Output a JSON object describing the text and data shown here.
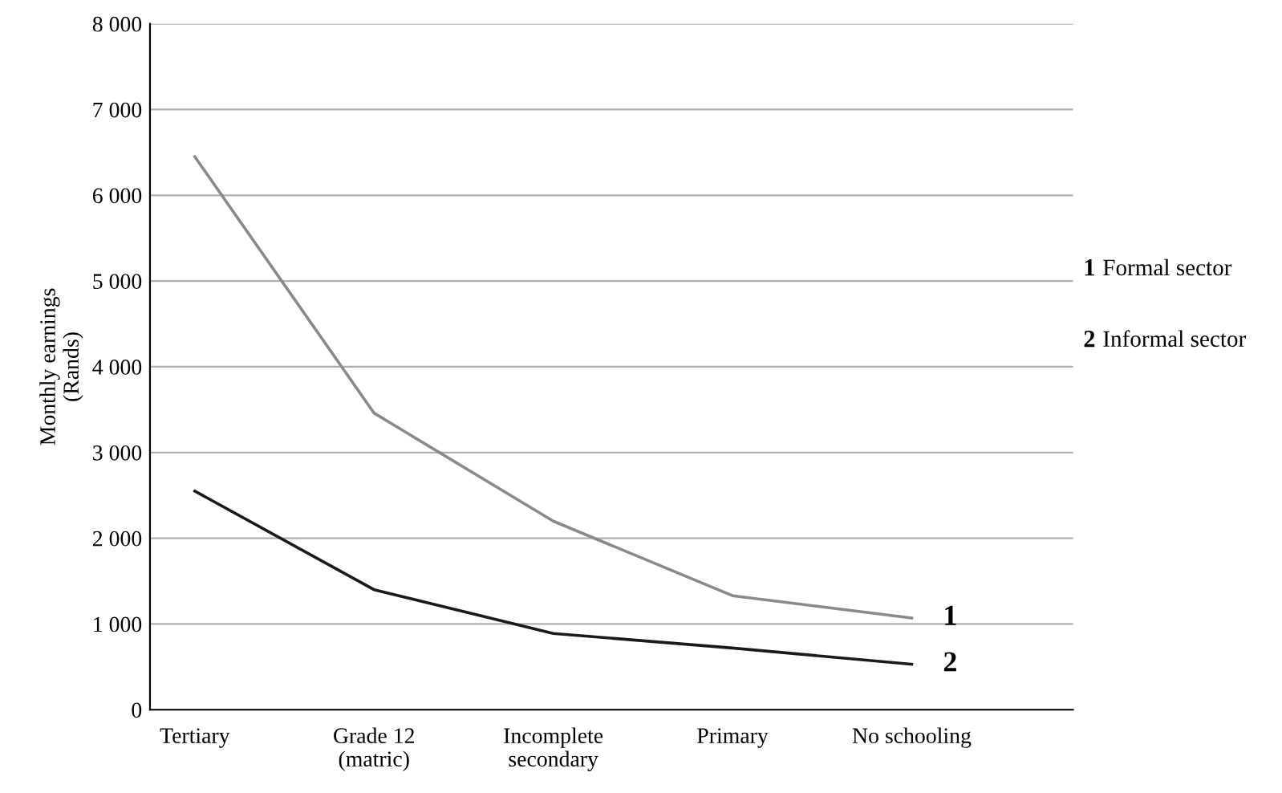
{
  "chart_data": {
    "type": "line",
    "ylabel": "Monthly earnings\n(Rands)",
    "categories": [
      "Tertiary",
      "Grade 12\n(matric)",
      "Incomplete\nsecondary",
      "Primary",
      "No schooling"
    ],
    "series": [
      {
        "name": "Formal sector",
        "color": "#8a8a8a",
        "values": [
          6450,
          3460,
          2200,
          1330,
          1070
        ]
      },
      {
        "name": "Informal sector",
        "color": "#1a1a1a",
        "values": [
          2550,
          1400,
          890,
          720,
          530
        ]
      }
    ],
    "ylim": [
      0,
      8000
    ],
    "yticks": [
      0,
      {
        "value": 1000,
        "label": "1 000"
      },
      {
        "value": 2000,
        "label": "2 000"
      },
      {
        "value": 3000,
        "label": "3 000"
      },
      {
        "value": 4000,
        "label": "4 000"
      },
      {
        "value": 5000,
        "label": "5 000"
      },
      {
        "value": 6000,
        "label": "6 000"
      },
      {
        "value": 7000,
        "label": "7 000"
      },
      {
        "value": 8000,
        "label": "8 000"
      }
    ],
    "grid": "y",
    "legend": "right",
    "marker": "none",
    "line_style": "solid",
    "annotations": [
      {
        "text": "1",
        "x": "No schooling",
        "y": 1070
      },
      {
        "text": "2",
        "x": "No schooling",
        "y": 530
      }
    ]
  }
}
